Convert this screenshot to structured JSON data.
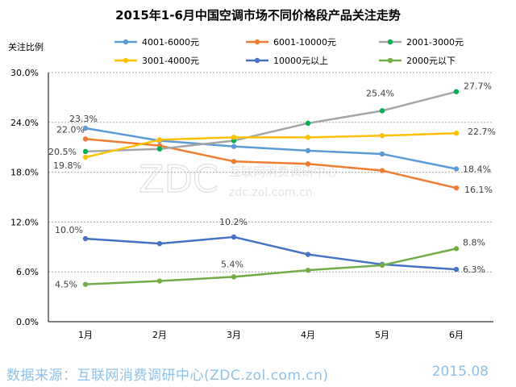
{
  "colors": {
    "s4001_6000": "#5b9bd5",
    "s6001_10000": "#ed7d31",
    "s2001_3000": "#a5a5a5",
    "s3001_4000": "#ffc000",
    "s10000plus": "#4472c4",
    "s2000minus": "#70ad47",
    "marker_2001_3000": "#00b050",
    "footer_text": "#8ec2e8",
    "watermark": "#e3e3e3"
  },
  "watermark": {
    "brand": "ZDC",
    "cn": "互联网消费调研中心",
    "url": "zdc.zol.com.cn"
  },
  "footer": {
    "source": "数据来源：互联网消费调研中心(ZDC.zol.com.cn)",
    "date": "2015.08"
  },
  "chart_data": {
    "type": "line",
    "title": "2015年1-6月中国空调市场不同价格段产品关注走势",
    "ylabel": "关注比例",
    "xlabel": "",
    "categories": [
      "1月",
      "2月",
      "3月",
      "4月",
      "5月",
      "6月"
    ],
    "ylim": [
      0,
      30
    ],
    "yticks": [
      "0.0%",
      "6.0%",
      "12.0%",
      "18.0%",
      "24.0%",
      "30.0%"
    ],
    "ytick_values": [
      0,
      6,
      12,
      18,
      24,
      30
    ],
    "legend_position": "top",
    "series": [
      {
        "name": "4001-6000元",
        "key": "s4001_6000",
        "values": [
          23.3,
          21.8,
          21.1,
          20.6,
          20.2,
          18.4
        ],
        "labels": [
          "23.3%",
          null,
          null,
          null,
          null,
          "18.4%"
        ]
      },
      {
        "name": "6001-10000元",
        "key": "s6001_10000",
        "values": [
          22.0,
          21.2,
          19.3,
          19.0,
          18.2,
          16.1
        ],
        "labels": [
          "22.0%",
          null,
          null,
          null,
          null,
          "16.1%"
        ]
      },
      {
        "name": "2001-3000元",
        "key": "s2001_3000",
        "values": [
          20.5,
          20.8,
          21.8,
          23.9,
          25.4,
          27.7
        ],
        "labels": [
          "20.5%",
          null,
          null,
          null,
          "25.4%",
          "27.7%"
        ]
      },
      {
        "name": "3001-4000元",
        "key": "s3001_4000",
        "values": [
          19.8,
          21.9,
          22.2,
          22.2,
          22.4,
          22.7
        ],
        "labels": [
          "19.8%",
          null,
          null,
          null,
          null,
          "22.7%"
        ]
      },
      {
        "name": "10000元以上",
        "key": "s10000plus",
        "values": [
          10.0,
          9.4,
          10.2,
          8.1,
          6.9,
          6.3
        ],
        "labels": [
          "10.0%",
          null,
          "10.2%",
          null,
          null,
          "6.3%"
        ]
      },
      {
        "name": "2000元以下",
        "key": "s2000minus",
        "values": [
          4.5,
          4.9,
          5.4,
          6.2,
          6.8,
          8.8
        ],
        "labels": [
          "4.5%",
          null,
          "5.4%",
          null,
          null,
          "8.8%"
        ]
      }
    ]
  }
}
